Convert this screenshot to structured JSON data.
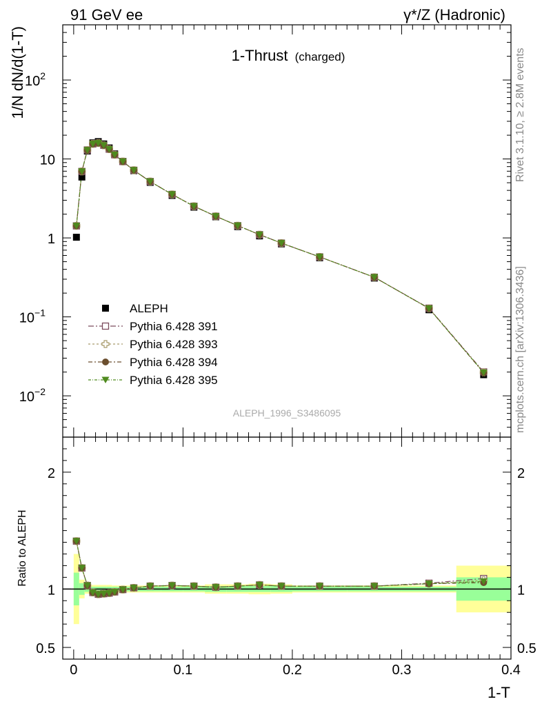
{
  "header": {
    "left": "91 GeV ee",
    "right": "γ*/Z (Hadronic)"
  },
  "side_labels": {
    "top": "Rivet 3.1.10, ≥ 2.8M events",
    "bottom": "mcplots.cern.ch [arXiv:1306.3436]"
  },
  "colors": {
    "aleph": "#000000",
    "p391": "#7b4a5c",
    "p393": "#a89a6a",
    "p394": "#6b4e2e",
    "p395": "#4f8a1e",
    "band_inner": "#99ff99",
    "band_outer": "#ffff99"
  },
  "chart_data": [
    {
      "type": "scatter",
      "title": "1-Thrust",
      "title_suffix": "(charged)",
      "watermark": "ALEPH_1996_S3486095",
      "ylabel": "1/N dN/d(1-T)",
      "yscale": "log",
      "ylim": [
        0.003,
        500
      ],
      "xlim": [
        -0.01,
        0.4
      ],
      "ytick_labels": [
        {
          "value": 100,
          "base": "10",
          "exp": "2"
        },
        {
          "value": 10,
          "base": "10",
          "exp": ""
        },
        {
          "value": 1,
          "base": "1",
          "exp": ""
        },
        {
          "value": 0.1,
          "base": "10",
          "exp": "−1"
        },
        {
          "value": 0.01,
          "base": "10",
          "exp": "−2"
        }
      ],
      "x": [
        0.0025,
        0.0075,
        0.0125,
        0.0175,
        0.0225,
        0.0275,
        0.0325,
        0.0375,
        0.045,
        0.055,
        0.07,
        0.09,
        0.11,
        0.13,
        0.15,
        0.17,
        0.19,
        0.225,
        0.275,
        0.325,
        0.375
      ],
      "series": [
        {
          "name": "ALEPH",
          "marker": "square-filled",
          "values": [
            1.02,
            5.9,
            12.6,
            16.0,
            16.6,
            15.5,
            13.8,
            11.6,
            9.3,
            7.1,
            5.05,
            3.45,
            2.45,
            1.85,
            1.39,
            1.06,
            0.84,
            0.56,
            0.31,
            0.123,
            0.0185
          ]
        },
        {
          "name": "Pythia 6.428 391",
          "marker": "square-open",
          "values": [
            1.42,
            6.95,
            13.0,
            15.5,
            15.9,
            14.9,
            13.3,
            11.3,
            9.28,
            7.2,
            5.18,
            3.56,
            2.52,
            1.88,
            1.43,
            1.1,
            0.86,
            0.575,
            0.318,
            0.129,
            0.0201
          ]
        },
        {
          "name": "Pythia 6.428 393",
          "marker": "cross-open",
          "values": [
            1.42,
            6.95,
            12.95,
            15.5,
            15.9,
            14.9,
            13.3,
            11.3,
            9.28,
            7.2,
            5.18,
            3.56,
            2.52,
            1.88,
            1.43,
            1.1,
            0.86,
            0.575,
            0.318,
            0.128,
            0.0198
          ]
        },
        {
          "name": "Pythia 6.428 394",
          "marker": "circle-filled",
          "values": [
            1.42,
            6.95,
            12.95,
            15.5,
            15.9,
            14.9,
            13.3,
            11.3,
            9.28,
            7.2,
            5.18,
            3.56,
            2.52,
            1.88,
            1.43,
            1.1,
            0.86,
            0.575,
            0.318,
            0.128,
            0.0196
          ]
        },
        {
          "name": "Pythia 6.428 395",
          "marker": "triangle-down-filled",
          "values": [
            1.42,
            6.95,
            12.95,
            15.5,
            15.9,
            14.9,
            13.3,
            11.3,
            9.28,
            7.2,
            5.18,
            3.56,
            2.52,
            1.88,
            1.43,
            1.1,
            0.86,
            0.575,
            0.318,
            0.128,
            0.0197
          ]
        }
      ],
      "legend_placement": "lower-left"
    },
    {
      "type": "scatter",
      "xlabel": "1-T",
      "ylabel": "Ratio to ALEPH",
      "ylim": [
        0.4,
        2.3
      ],
      "xlim": [
        -0.01,
        0.4
      ],
      "xtick_labels": [
        "0",
        "0.1",
        "0.2",
        "0.3",
        "0.4"
      ],
      "xtick_values": [
        0,
        0.1,
        0.2,
        0.3,
        0.4
      ],
      "ytick_labels": [
        "0.5",
        "1",
        "2"
      ],
      "ytick_values": [
        0.5,
        1,
        2
      ],
      "bin_edges": [
        0,
        0.005,
        0.01,
        0.015,
        0.02,
        0.025,
        0.03,
        0.035,
        0.04,
        0.05,
        0.06,
        0.08,
        0.1,
        0.12,
        0.14,
        0.16,
        0.18,
        0.2,
        0.25,
        0.3,
        0.35,
        0.4
      ],
      "band_inner": [
        0.14,
        0.05,
        0.025,
        0.02,
        0.02,
        0.02,
        0.02,
        0.02,
        0.02,
        0.02,
        0.02,
        0.02,
        0.02,
        0.025,
        0.025,
        0.025,
        0.025,
        0.02,
        0.02,
        0.02,
        0.1
      ],
      "band_outer": [
        0.3,
        0.08,
        0.04,
        0.035,
        0.035,
        0.035,
        0.035,
        0.03,
        0.03,
        0.03,
        0.03,
        0.03,
        0.03,
        0.04,
        0.04,
        0.045,
        0.04,
        0.03,
        0.03,
        0.03,
        0.2
      ],
      "x": [
        0.0025,
        0.0075,
        0.0125,
        0.0175,
        0.0225,
        0.0275,
        0.0325,
        0.0375,
        0.045,
        0.055,
        0.07,
        0.09,
        0.11,
        0.13,
        0.15,
        0.17,
        0.19,
        0.225,
        0.275,
        0.325,
        0.375
      ],
      "series": [
        {
          "name": "Pythia 6.428 391",
          "values": [
            1.41,
            1.18,
            1.03,
            0.97,
            0.955,
            0.96,
            0.965,
            0.975,
            0.995,
            1.01,
            1.025,
            1.03,
            1.025,
            1.015,
            1.025,
            1.035,
            1.025,
            1.025,
            1.025,
            1.05,
            1.09
          ]
        },
        {
          "name": "Pythia 6.428 393",
          "values": [
            1.41,
            1.18,
            1.03,
            0.97,
            0.955,
            0.96,
            0.965,
            0.975,
            0.995,
            1.01,
            1.025,
            1.03,
            1.025,
            1.015,
            1.025,
            1.035,
            1.025,
            1.025,
            1.025,
            1.045,
            1.075
          ]
        },
        {
          "name": "Pythia 6.428 394",
          "values": [
            1.41,
            1.18,
            1.03,
            0.97,
            0.955,
            0.96,
            0.965,
            0.975,
            0.995,
            1.01,
            1.025,
            1.03,
            1.025,
            1.015,
            1.025,
            1.035,
            1.025,
            1.025,
            1.025,
            1.045,
            1.055
          ]
        },
        {
          "name": "Pythia 6.428 395",
          "values": [
            1.41,
            1.18,
            1.03,
            0.97,
            0.955,
            0.96,
            0.965,
            0.975,
            0.995,
            1.01,
            1.025,
            1.03,
            1.025,
            1.015,
            1.025,
            1.035,
            1.025,
            1.025,
            1.025,
            1.045,
            1.065
          ]
        }
      ]
    }
  ]
}
